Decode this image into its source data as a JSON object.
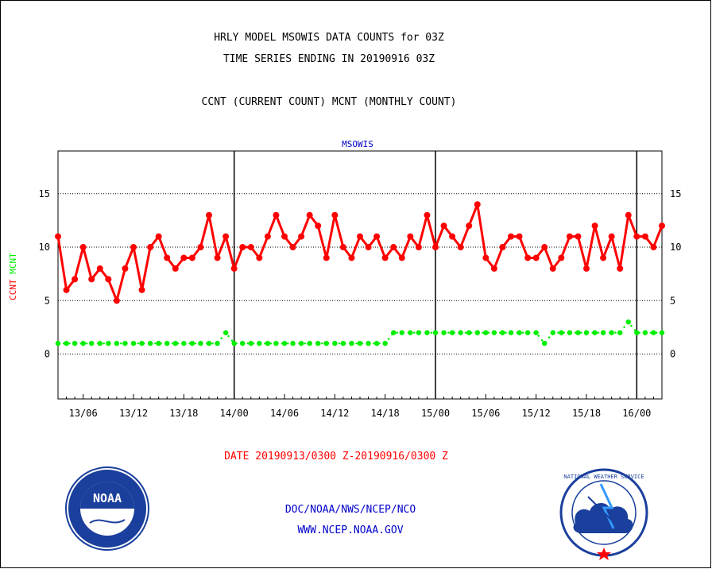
{
  "header": {
    "title_line1": "HRLY MODEL MSOWIS DATA COUNTS for 03Z",
    "title_line2": "TIME SERIES ENDING IN 20190916 03Z",
    "subtitle": "CCNT (CURRENT COUNT) MCNT (MONTHLY COUNT)"
  },
  "footer": {
    "date_range": "DATE 20190913/0300 Z-20190916/0300 Z",
    "org_line": "DOC/NOAA/NWS/NCEP/NCO",
    "url": "WWW.NCEP.NOAA.GOV"
  },
  "logos": {
    "left_text": "NOAA",
    "right_text": "NATIONAL WEATHER SERVICE"
  },
  "colors": {
    "ccnt": "#ff0000",
    "mcnt": "#00ee00",
    "label_blue": "#0000cc",
    "axis": "#000000"
  },
  "chart_data": {
    "type": "line",
    "title": "MSOWIS",
    "ylabel_ccnt": "CCNT",
    "ylabel_mcnt": "MCNT",
    "ylim": [
      -4.2,
      19
    ],
    "yticks": [
      0,
      5,
      10,
      15
    ],
    "ytick_labels": [
      "0",
      "5",
      "10",
      "15"
    ],
    "x_hour_range": [
      3,
      75
    ],
    "xticks": [
      6,
      12,
      18,
      24,
      30,
      36,
      42,
      48,
      54,
      60,
      66,
      72
    ],
    "xtick_labels": [
      "13/06",
      "13/12",
      "13/18",
      "14/00",
      "14/06",
      "14/12",
      "14/18",
      "15/00",
      "15/06",
      "15/12",
      "15/18",
      "16/00"
    ],
    "day_separators": [
      24,
      48,
      72
    ],
    "grid": "dotted horizontal at y ticks",
    "series": [
      {
        "name": "CCNT",
        "x_start_hour": 3,
        "values": [
          11,
          6,
          7,
          10,
          7,
          8,
          7,
          5,
          8,
          10,
          6,
          10,
          11,
          9,
          8,
          9,
          9,
          10,
          13,
          9,
          11,
          8,
          10,
          10,
          9,
          11,
          13,
          11,
          10,
          11,
          13,
          12,
          9,
          13,
          10,
          9,
          11,
          10,
          11,
          9,
          10,
          9,
          11,
          10,
          13,
          10,
          12,
          11,
          10,
          12,
          14,
          9,
          8,
          10,
          11,
          11,
          9,
          9,
          10,
          8,
          9,
          11,
          11,
          8,
          12,
          9,
          11,
          8,
          13,
          11,
          11,
          10,
          12
        ]
      },
      {
        "name": "MCNT",
        "x_start_hour": 3,
        "values": [
          1,
          1,
          1,
          1,
          1,
          1,
          1,
          1,
          1,
          1,
          1,
          1,
          1,
          1,
          1,
          1,
          1,
          1,
          1,
          1,
          2,
          1,
          1,
          1,
          1,
          1,
          1,
          1,
          1,
          1,
          1,
          1,
          1,
          1,
          1,
          1,
          1,
          1,
          1,
          1,
          2,
          2,
          2,
          2,
          2,
          2,
          2,
          2,
          2,
          2,
          2,
          2,
          2,
          2,
          2,
          2,
          2,
          2,
          1,
          2,
          2,
          2,
          2,
          2,
          2,
          2,
          2,
          2,
          3,
          2,
          2,
          2,
          2
        ]
      }
    ]
  }
}
